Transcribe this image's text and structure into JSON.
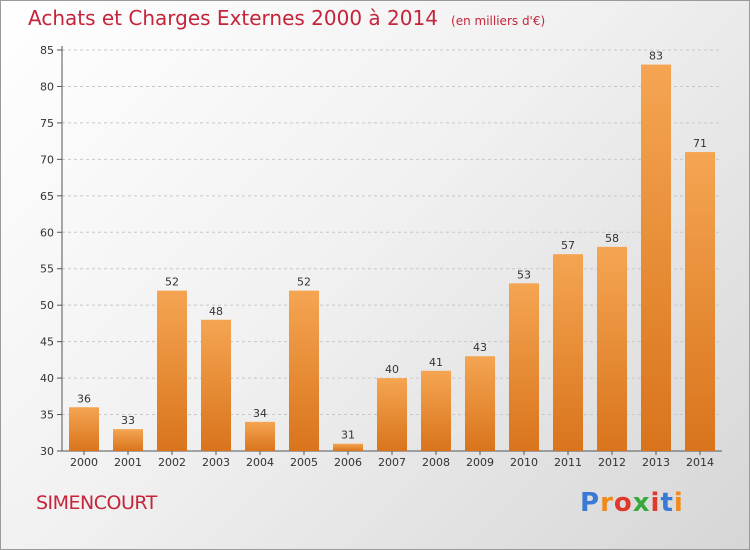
{
  "header": {
    "title": "Achats et Charges Externes 2000 à 2014",
    "unit": "(en milliers d'€)"
  },
  "footer": {
    "commune": "SIMENCOURT",
    "brand": "Proxiti",
    "brand_letters": [
      "P",
      "r",
      "o",
      "x",
      "i",
      "t",
      "i"
    ],
    "brand_colors": [
      "#3a7ad6",
      "#f08a1c",
      "#e2382b",
      "#3aa83a",
      "#e2382b",
      "#3a7ad6",
      "#f08a1c"
    ]
  },
  "chart_data": {
    "type": "bar",
    "categories": [
      "2000",
      "2001",
      "2002",
      "2003",
      "2004",
      "2005",
      "2006",
      "2007",
      "2008",
      "2009",
      "2010",
      "2011",
      "2012",
      "2013",
      "2014"
    ],
    "values": [
      36,
      33,
      52,
      48,
      34,
      52,
      31,
      40,
      41,
      43,
      53,
      57,
      58,
      83,
      71
    ],
    "title": "Achats et Charges Externes 2000 à 2014",
    "xlabel": "",
    "ylabel": "",
    "ylim": [
      30,
      85
    ],
    "yticks": [
      30,
      35,
      40,
      45,
      50,
      55,
      60,
      65,
      70,
      75,
      80,
      85
    ],
    "grid": true,
    "bar_color": "#f0a04a"
  }
}
